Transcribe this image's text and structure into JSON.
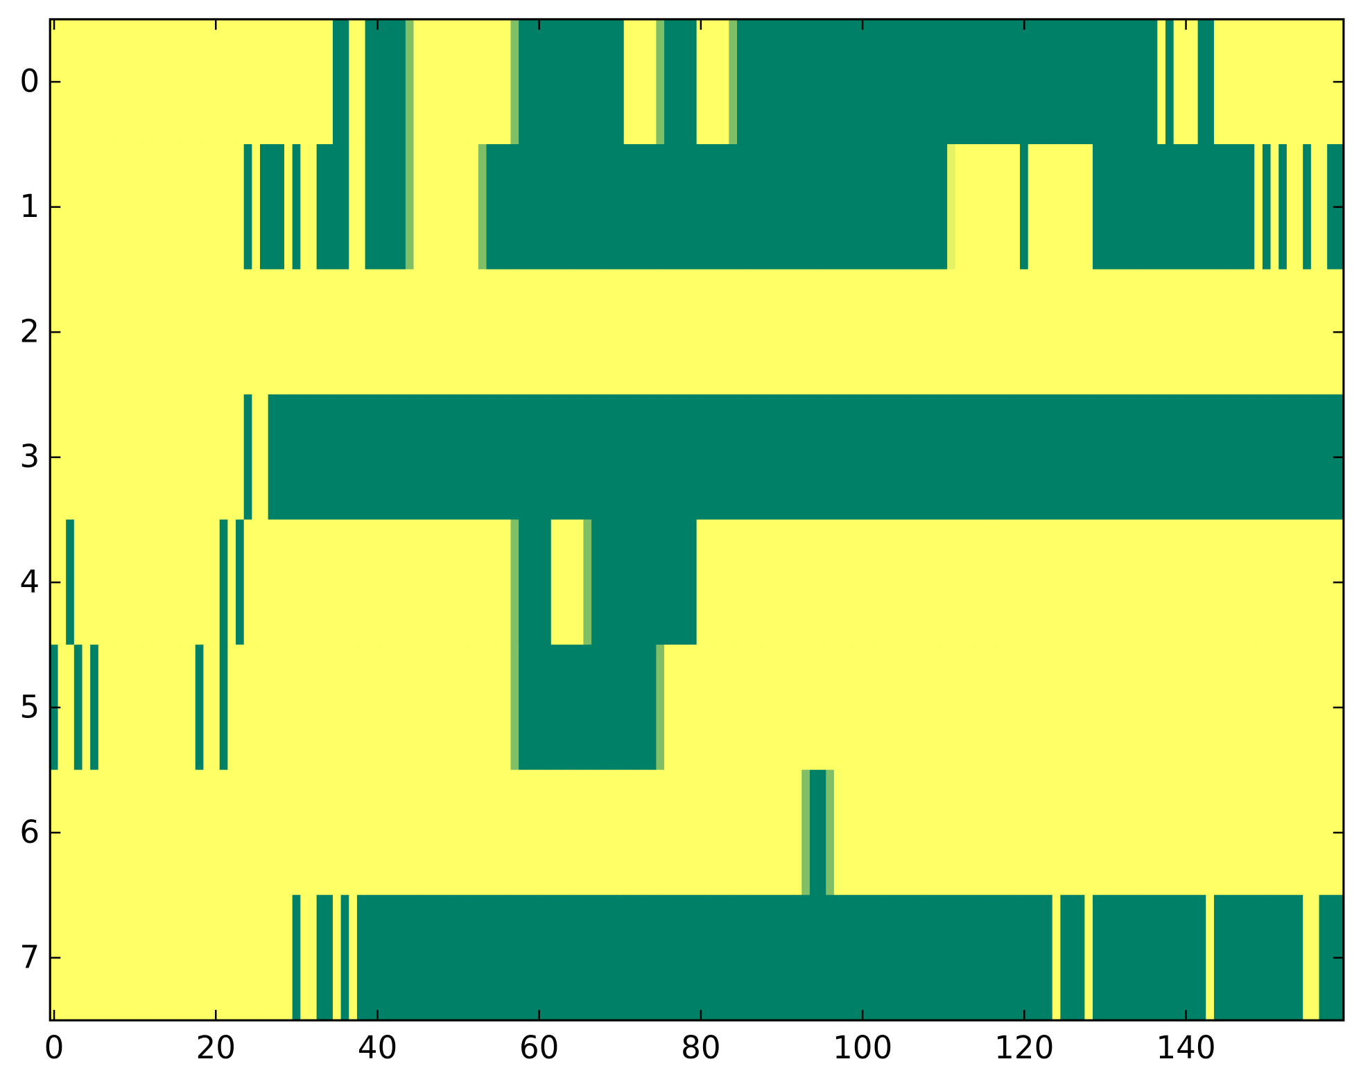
{
  "chart_data": {
    "type": "heatmap",
    "colormap": "summer",
    "xlim": [
      -0.5,
      159.5
    ],
    "ylim": [
      7.5,
      -0.5
    ],
    "xticks": [
      0,
      20,
      40,
      60,
      80,
      100,
      120,
      140
    ],
    "yticks": [
      0,
      1,
      2,
      3,
      4,
      5,
      6,
      7
    ],
    "values": [
      [
        1,
        1,
        1,
        1,
        1,
        1,
        1,
        1,
        1,
        1,
        1,
        1,
        1,
        1,
        1,
        1,
        1,
        1,
        1,
        1,
        1,
        1,
        1,
        1,
        1,
        1,
        1,
        1,
        1,
        1,
        1,
        1,
        1,
        1,
        1,
        0,
        0,
        1,
        1,
        0,
        0,
        0,
        0,
        0,
        0.5,
        1,
        1,
        1,
        1,
        1,
        1,
        1,
        1,
        1,
        1,
        1,
        1,
        0.5,
        0,
        0,
        0,
        0,
        0,
        0,
        0,
        0,
        0,
        0,
        0,
        0,
        0,
        1,
        1,
        1,
        1,
        0.5,
        0,
        0,
        0,
        0,
        1,
        1,
        1,
        1,
        0.5,
        0,
        0,
        0,
        0,
        0,
        0,
        0,
        0,
        0,
        0,
        0,
        0,
        0,
        0,
        0,
        0,
        0,
        0,
        0,
        0,
        0,
        0,
        0,
        0,
        0,
        0,
        0,
        0,
        0,
        0,
        0,
        0,
        0,
        0,
        0,
        0,
        0,
        0,
        0,
        0,
        0,
        0,
        0,
        0,
        0,
        0,
        0,
        0,
        0,
        0,
        0,
        0,
        1,
        0,
        1,
        1,
        1,
        0,
        0,
        1,
        1,
        1,
        1,
        1,
        1,
        1,
        1,
        1,
        1,
        1,
        1,
        1,
        1,
        1,
        1
      ],
      [
        1,
        1,
        1,
        1,
        1,
        1,
        1,
        1,
        1,
        1,
        1,
        1,
        1,
        1,
        1,
        1,
        1,
        1,
        1,
        1,
        1,
        1,
        1,
        1,
        0,
        1,
        0,
        0,
        0,
        1,
        0,
        1,
        1,
        0,
        0,
        0,
        0,
        1,
        1,
        0,
        0,
        0,
        0,
        0,
        0.5,
        1,
        1,
        1,
        1,
        1,
        1,
        1,
        1,
        0.5,
        0,
        0,
        0,
        0,
        0,
        0,
        0,
        0,
        0,
        0,
        0,
        0,
        0,
        0,
        0,
        0,
        0,
        0,
        0,
        0,
        0,
        0,
        0,
        0,
        0,
        0,
        0,
        0,
        0,
        0,
        0,
        0,
        0,
        0,
        0,
        0,
        0,
        0,
        0,
        0,
        0,
        0,
        0,
        0,
        0,
        0,
        0,
        0,
        0,
        0,
        0,
        0,
        0,
        0,
        0,
        0,
        0,
        0.9,
        1,
        1,
        1,
        1,
        1,
        1,
        1,
        1,
        0,
        1,
        1,
        1,
        1,
        1,
        1,
        1,
        1,
        0,
        0,
        0,
        0,
        0,
        0,
        0,
        0,
        0,
        0,
        0,
        0,
        0,
        0,
        0,
        0,
        0,
        0,
        0,
        0,
        1,
        0,
        1,
        0,
        1,
        1,
        0,
        1,
        1,
        0,
        0
      ],
      [
        1,
        1,
        1,
        1,
        1,
        1,
        1,
        1,
        1,
        1,
        1,
        1,
        1,
        1,
        1,
        1,
        1,
        1,
        1,
        1,
        1,
        1,
        1,
        1,
        1,
        1,
        1,
        1,
        1,
        1,
        1,
        1,
        1,
        1,
        1,
        1,
        1,
        1,
        1,
        1,
        1,
        1,
        1,
        1,
        1,
        1,
        1,
        1,
        1,
        1,
        1,
        1,
        1,
        1,
        1,
        1,
        1,
        1,
        1,
        1,
        1,
        1,
        1,
        1,
        1,
        1,
        1,
        1,
        1,
        1,
        1,
        1,
        1,
        1,
        1,
        1,
        1,
        1,
        1,
        1,
        1,
        1,
        1,
        1,
        1,
        1,
        1,
        1,
        1,
        1,
        1,
        1,
        1,
        1,
        1,
        1,
        1,
        1,
        1,
        1,
        1,
        1,
        1,
        1,
        1,
        1,
        1,
        1,
        1,
        1,
        1,
        1,
        1,
        1,
        1,
        1,
        1,
        1,
        1,
        1,
        1,
        1,
        1,
        1,
        1,
        1,
        1,
        1,
        1,
        1,
        1,
        1,
        1,
        1,
        1,
        1,
        1,
        1,
        1,
        1,
        1,
        1,
        1,
        1,
        1,
        1,
        1,
        1,
        1,
        1,
        1,
        1,
        1,
        1,
        1,
        1,
        1,
        1,
        1,
        1
      ],
      [
        1,
        1,
        1,
        1,
        1,
        1,
        1,
        1,
        1,
        1,
        1,
        1,
        1,
        1,
        1,
        1,
        1,
        1,
        1,
        1,
        1,
        1,
        1,
        1,
        0,
        1,
        1,
        0,
        0,
        0,
        0,
        0,
        0,
        0,
        0,
        0,
        0,
        0,
        0,
        0,
        0,
        0,
        0,
        0,
        0,
        0,
        0,
        0,
        0,
        0,
        0,
        0,
        0,
        0,
        0,
        0,
        0,
        0,
        0,
        0,
        0,
        0,
        0,
        0,
        0,
        0,
        0,
        0,
        0,
        0,
        0,
        0,
        0,
        0,
        0,
        0,
        0,
        0,
        0,
        0,
        0,
        0,
        0,
        0,
        0,
        0,
        0,
        0,
        0,
        0,
        0,
        0,
        0,
        0,
        0,
        0,
        0,
        0,
        0,
        0,
        0,
        0,
        0,
        0,
        0,
        0,
        0,
        0,
        0,
        0,
        0,
        0,
        0,
        0,
        0,
        0,
        0,
        0,
        0,
        0,
        0,
        0,
        0,
        0,
        0,
        0,
        0,
        0,
        0,
        0,
        0,
        0,
        0,
        0,
        0,
        0,
        0,
        0,
        0,
        0,
        0,
        0,
        0,
        0,
        0,
        0,
        0,
        0,
        0,
        0,
        0,
        0,
        0,
        0,
        0,
        0,
        0,
        0,
        0,
        0
      ],
      [
        1,
        1,
        0,
        1,
        1,
        1,
        1,
        1,
        1,
        1,
        1,
        1,
        1,
        1,
        1,
        1,
        1,
        1,
        1,
        1,
        1,
        0,
        1,
        0,
        1,
        1,
        1,
        1,
        1,
        1,
        1,
        1,
        1,
        1,
        1,
        1,
        1,
        1,
        1,
        1,
        1,
        1,
        1,
        1,
        1,
        1,
        1,
        1,
        1,
        1,
        1,
        1,
        1,
        1,
        1,
        1,
        1,
        0.5,
        0,
        0,
        0,
        0,
        1,
        1,
        1,
        1,
        0.5,
        0,
        0,
        0,
        0,
        0,
        0,
        0,
        0,
        0,
        0,
        0,
        0,
        0,
        1,
        1,
        1,
        1,
        1,
        1,
        1,
        1,
        1,
        1,
        1,
        1,
        1,
        1,
        1,
        1,
        1,
        1,
        1,
        1,
        1,
        1,
        1,
        1,
        1,
        1,
        1,
        1,
        1,
        1,
        1,
        1,
        1,
        1,
        1,
        1,
        1,
        1,
        1,
        1,
        1,
        1,
        1,
        1,
        1,
        1,
        1,
        1,
        1,
        1,
        1,
        1,
        1,
        1,
        1,
        1,
        1,
        1,
        1,
        1,
        1,
        1,
        1,
        1,
        1,
        1,
        1,
        1,
        1,
        1,
        1,
        1,
        1,
        1,
        1,
        1,
        1,
        1,
        1,
        1
      ],
      [
        0,
        1,
        1,
        0,
        1,
        0,
        1,
        1,
        1,
        1,
        1,
        1,
        1,
        1,
        1,
        1,
        1,
        1,
        0,
        1,
        1,
        0,
        1,
        1,
        1,
        1,
        1,
        1,
        1,
        1,
        1,
        1,
        1,
        1,
        1,
        1,
        1,
        1,
        1,
        1,
        1,
        1,
        1,
        1,
        1,
        1,
        1,
        1,
        1,
        1,
        1,
        1,
        1,
        1,
        1,
        1,
        1,
        0.5,
        0,
        0,
        0,
        0,
        0,
        0,
        0,
        0,
        0,
        0,
        0,
        0,
        0,
        0,
        0,
        0,
        0,
        0.5,
        1,
        1,
        1,
        1,
        1,
        1,
        1,
        1,
        1,
        1,
        1,
        1,
        1,
        1,
        1,
        1,
        1,
        1,
        1,
        1,
        1,
        1,
        1,
        1,
        1,
        1,
        1,
        1,
        1,
        1,
        1,
        1,
        1,
        1,
        1,
        1,
        1,
        1,
        1,
        1,
        1,
        1,
        1,
        1,
        1,
        1,
        1,
        1,
        1,
        1,
        1,
        1,
        1,
        1,
        1,
        1,
        1,
        1,
        1,
        1,
        1,
        1,
        1,
        1,
        1,
        1,
        1,
        1,
        1,
        1,
        1,
        1,
        1,
        1,
        1,
        1,
        1,
        1,
        1,
        1,
        1,
        1,
        1,
        1
      ],
      [
        1,
        1,
        1,
        1,
        1,
        1,
        1,
        1,
        1,
        1,
        1,
        1,
        1,
        1,
        1,
        1,
        1,
        1,
        1,
        1,
        1,
        1,
        1,
        1,
        1,
        1,
        1,
        1,
        1,
        1,
        1,
        1,
        1,
        1,
        1,
        1,
        1,
        1,
        1,
        1,
        1,
        1,
        1,
        1,
        1,
        1,
        1,
        1,
        1,
        1,
        1,
        1,
        1,
        1,
        1,
        1,
        1,
        1,
        1,
        1,
        1,
        1,
        1,
        1,
        1,
        1,
        1,
        1,
        1,
        1,
        1,
        1,
        1,
        1,
        1,
        1,
        1,
        1,
        1,
        1,
        1,
        1,
        1,
        1,
        1,
        1,
        1,
        1,
        1,
        1,
        1,
        1,
        1,
        0.5,
        0,
        0,
        0.5,
        1,
        1,
        1,
        1,
        1,
        1,
        1,
        1,
        1,
        1,
        1,
        1,
        1,
        1,
        1,
        1,
        1,
        1,
        1,
        1,
        1,
        1,
        1,
        1,
        1,
        1,
        1,
        1,
        1,
        1,
        1,
        1,
        1,
        1,
        1,
        1,
        1,
        1,
        1,
        1,
        1,
        1,
        1,
        1,
        1,
        1,
        1,
        1,
        1,
        1,
        1,
        1,
        1,
        1,
        1,
        1,
        1,
        1,
        1,
        1,
        1,
        1,
        1
      ],
      [
        1,
        1,
        1,
        1,
        1,
        1,
        1,
        1,
        1,
        1,
        1,
        1,
        1,
        1,
        1,
        1,
        1,
        1,
        1,
        1,
        1,
        1,
        1,
        1,
        1,
        1,
        1,
        1,
        1,
        1,
        0,
        1,
        1,
        0,
        0,
        1,
        0,
        1,
        0,
        0,
        0,
        0,
        0,
        0,
        0,
        0,
        0,
        0,
        0,
        0,
        0,
        0,
        0,
        0,
        0,
        0,
        0,
        0,
        0,
        0,
        0,
        0,
        0,
        0,
        0,
        0,
        0,
        0,
        0,
        0,
        0,
        0,
        0,
        0,
        0,
        0,
        0,
        0,
        0,
        0,
        0,
        0,
        0,
        0,
        0,
        0,
        0,
        0,
        0,
        0,
        0,
        0,
        0,
        0,
        0,
        0,
        0,
        0,
        0,
        0,
        0,
        0,
        0,
        0,
        0,
        0,
        0,
        0,
        0,
        0,
        0,
        0,
        0,
        0,
        0,
        0,
        0,
        0,
        0,
        0,
        0,
        0,
        0,
        0,
        1,
        0,
        0,
        0,
        1,
        0,
        0,
        0,
        0,
        0,
        0,
        0,
        0,
        0,
        0,
        0,
        0,
        0,
        0,
        1,
        0,
        0,
        0,
        0,
        0,
        0,
        0,
        0,
        0,
        0,
        0,
        1,
        1,
        0,
        0,
        0
      ]
    ]
  }
}
